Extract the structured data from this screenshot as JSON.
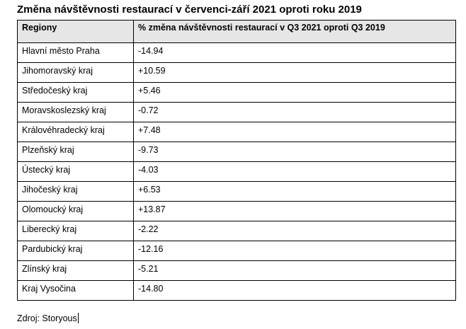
{
  "title": "Změna návštěvnosti restaurací v červenci-září 2021 oproti roku 2019",
  "table": {
    "headers": [
      "Regiony",
      "% změna návštěvnosti restaurací v Q3 2021 oproti Q3 2019"
    ],
    "rows": [
      [
        "Hlavní město Praha",
        "-14.94"
      ],
      [
        "Jihomoravský kraj",
        "+10.59"
      ],
      [
        "Středočeský kraj",
        "+5.46"
      ],
      [
        "Moravskoslezský kraj",
        "-0.72"
      ],
      [
        "Královéhradecký kraj",
        "+7.48"
      ],
      [
        "Plzeňský kraj",
        "-9.73"
      ],
      [
        "Ústecký kraj",
        "-4.03"
      ],
      [
        "Jihočeský kraj",
        "+6.53"
      ],
      [
        "Olomoucký kraj",
        "+13.87"
      ],
      [
        "Liberecký kraj",
        "-2.22"
      ],
      [
        "Pardubický kraj",
        "-12.16"
      ],
      [
        "Zlínský kraj",
        "-5.21"
      ],
      [
        "Kraj Vysočina",
        "-14.80"
      ]
    ]
  },
  "source": "Zdroj: Storyous",
  "colors": {
    "header_background": "#e6e6e6",
    "border": "#000000"
  }
}
